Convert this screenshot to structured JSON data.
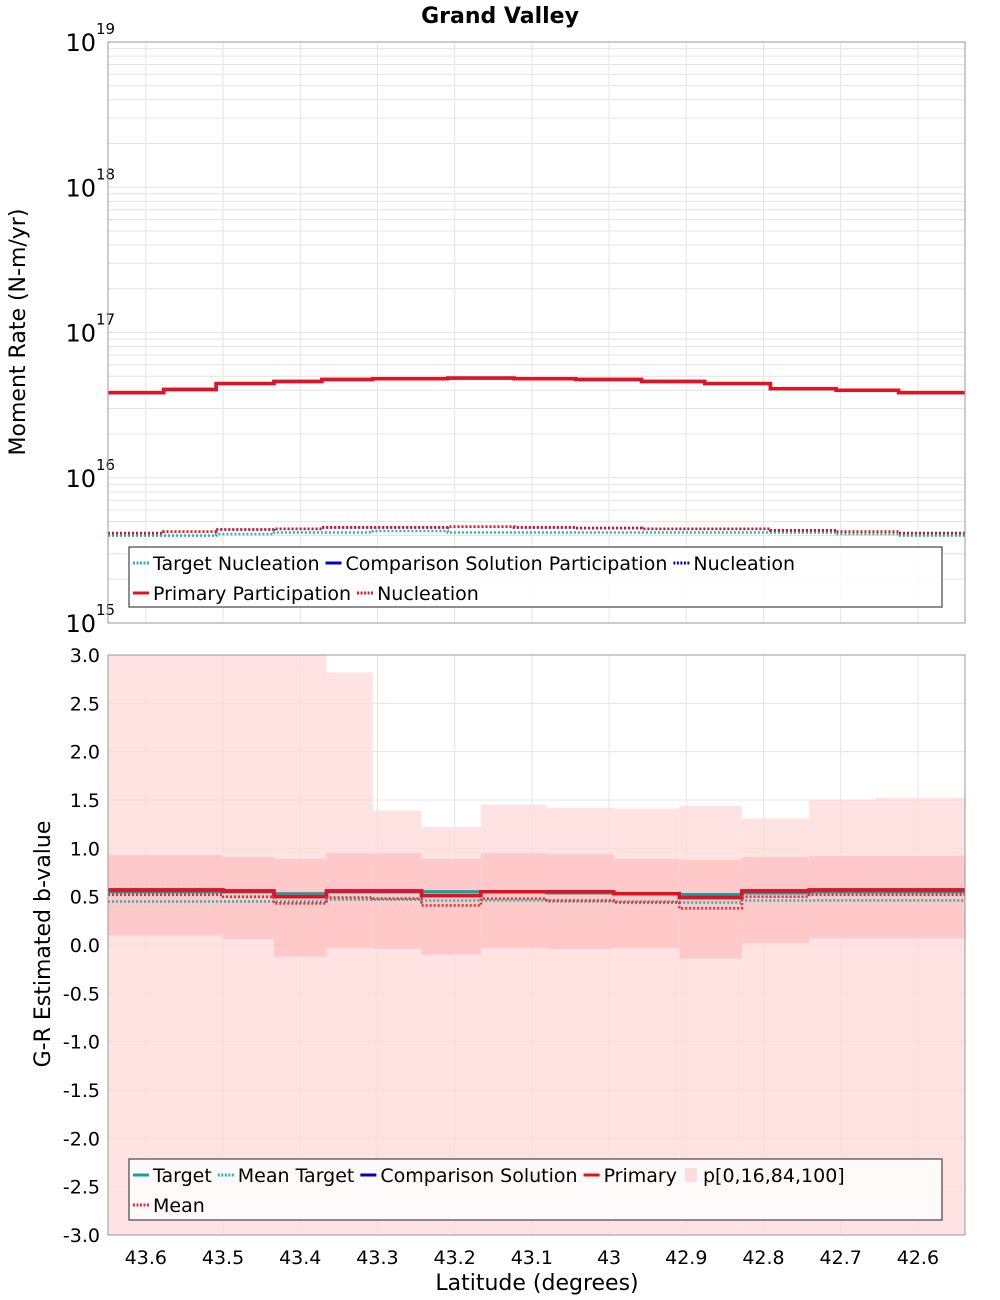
{
  "figure": {
    "title": "Grand Valley",
    "xlabel": "Latitude (degrees)",
    "x_ticks": [
      43.6,
      43.5,
      43.4,
      43.3,
      43.2,
      43.1,
      43.0,
      42.9,
      42.8,
      42.7,
      42.6
    ],
    "x_tick_labels": [
      "43.6",
      "43.5",
      "43.4",
      "43.3",
      "43.2",
      "43.1",
      "43",
      "42.9",
      "42.8",
      "42.7",
      "42.6"
    ],
    "xlim": [
      43.649,
      42.539
    ]
  },
  "colors": {
    "target": "#1a9e9e",
    "mean_target": "#22b8b8",
    "comparison": "#0000cc",
    "primary": "#e8101a",
    "mean_primary": "#e03030",
    "band_outer": "#ffdcdc",
    "band_inner": "#ffc4c4",
    "grid": "#e4e4e4"
  },
  "chart_data": [
    {
      "type": "line",
      "subtype": "step",
      "ylabel": "Moment Rate (N-m/yr)",
      "yscale": "log",
      "ylim": [
        1000000000000000.0,
        1e+19
      ],
      "y_ticks": [
        {
          "base": "10",
          "exp": "15"
        },
        {
          "base": "10",
          "exp": "16"
        },
        {
          "base": "10",
          "exp": "17"
        },
        {
          "base": "10",
          "exp": "18"
        },
        {
          "base": "10",
          "exp": "19"
        }
      ],
      "bins": [
        [
          43.649,
          43.577
        ],
        [
          43.577,
          43.509
        ],
        [
          43.509,
          43.434
        ],
        [
          43.434,
          43.372
        ],
        [
          43.372,
          43.306
        ],
        [
          43.306,
          43.209
        ],
        [
          43.209,
          43.123
        ],
        [
          43.123,
          43.043
        ],
        [
          43.043,
          42.958
        ],
        [
          42.958,
          42.876
        ],
        [
          42.876,
          42.791
        ],
        [
          42.791,
          42.706
        ],
        [
          42.706,
          42.625
        ],
        [
          42.625,
          42.539
        ]
      ],
      "series": [
        {
          "name": "Target Nucleation",
          "style": "dotted",
          "color_key": "mean_target",
          "values": [
            4000000000000000.0,
            4000000000000000.0,
            4100000000000000.0,
            4200000000000000.0,
            4200000000000000.0,
            4300000000000000.0,
            4200000000000000.0,
            4200000000000000.0,
            4200000000000000.0,
            4200000000000000.0,
            4200000000000000.0,
            4200000000000000.0,
            4100000000000000.0,
            4000000000000000.0
          ]
        },
        {
          "name": "Comparison Solution Participation",
          "style": "solid",
          "color_key": "comparison",
          "values": [
            3.85e+16,
            4.05e+16,
            4.45e+16,
            4.6e+16,
            4.75e+16,
            4.8e+16,
            4.85e+16,
            4.8e+16,
            4.75e+16,
            4.6e+16,
            4.45e+16,
            4.1e+16,
            4e+16,
            3.85e+16
          ]
        },
        {
          "name": "Nucleation",
          "style": "dotted",
          "color_key": "comparison",
          "values": [
            4150000000000000.0,
            4250000000000000.0,
            4400000000000000.0,
            4450000000000000.0,
            4550000000000000.0,
            4550000000000000.0,
            4600000000000000.0,
            4550000000000000.0,
            4500000000000000.0,
            4450000000000000.0,
            4450000000000000.0,
            4350000000000000.0,
            4250000000000000.0,
            4150000000000000.0
          ]
        },
        {
          "name": "Primary Participation",
          "style": "solid",
          "color_key": "primary",
          "values": [
            3.85e+16,
            4.05e+16,
            4.45e+16,
            4.6e+16,
            4.75e+16,
            4.8e+16,
            4.85e+16,
            4.8e+16,
            4.75e+16,
            4.6e+16,
            4.45e+16,
            4.1e+16,
            4e+16,
            3.85e+16
          ]
        },
        {
          "name": "Nucleation",
          "style": "dotted",
          "color_key": "primary",
          "values": [
            4150000000000000.0,
            4250000000000000.0,
            4400000000000000.0,
            4450000000000000.0,
            4550000000000000.0,
            4550000000000000.0,
            4600000000000000.0,
            4550000000000000.0,
            4500000000000000.0,
            4450000000000000.0,
            4450000000000000.0,
            4350000000000000.0,
            4250000000000000.0,
            4150000000000000.0
          ]
        }
      ],
      "legend": {
        "placement": "bottom",
        "rows": [
          [
            {
              "label": "Target Nucleation",
              "style": "dotted",
              "color_key": "mean_target"
            },
            {
              "label": "Comparison Solution Participation",
              "style": "solid",
              "color_key": "comparison"
            },
            {
              "label": "Nucleation",
              "style": "dotted",
              "color_key": "comparison"
            }
          ],
          [
            {
              "label": "Primary Participation",
              "style": "solid",
              "color_key": "primary"
            },
            {
              "label": "Nucleation",
              "style": "dotted",
              "color_key": "primary"
            }
          ]
        ]
      }
    },
    {
      "type": "line",
      "subtype": "step",
      "ylabel": "G-R Estimated b-value",
      "yscale": "linear",
      "ylim": [
        -3.0,
        3.0
      ],
      "y_ticks": [
        "3.0",
        "2.5",
        "2.0",
        "1.5",
        "1.0",
        "0.5",
        "0.0",
        "-0.5",
        "-1.0",
        "-1.5",
        "-2.0",
        "-2.5",
        "-3.0"
      ],
      "bins": [
        [
          43.649,
          43.5
        ],
        [
          43.5,
          43.434
        ],
        [
          43.434,
          43.366
        ],
        [
          43.366,
          43.306
        ],
        [
          43.306,
          43.243
        ],
        [
          43.243,
          43.166
        ],
        [
          43.166,
          43.081
        ],
        [
          43.081,
          42.994
        ],
        [
          42.994,
          42.909
        ],
        [
          42.909,
          42.828
        ],
        [
          42.828,
          42.741
        ],
        [
          42.741,
          42.655
        ],
        [
          42.655,
          42.539
        ]
      ],
      "percentile_band": {
        "name": "p[0,16,84,100]",
        "p0": [
          -3.0,
          -3.0,
          -3.0,
          -3.0,
          -3.0,
          -3.0,
          -3.0,
          -3.0,
          -3.0,
          -3.0,
          -3.0,
          -3.0,
          -3.0
        ],
        "p16": [
          0.1,
          0.06,
          -0.12,
          -0.03,
          -0.04,
          -0.1,
          -0.03,
          -0.04,
          -0.03,
          -0.14,
          0.02,
          0.07,
          0.07
        ],
        "p84": [
          0.93,
          0.91,
          0.89,
          0.95,
          0.95,
          0.89,
          0.95,
          0.94,
          0.89,
          0.88,
          0.91,
          0.92,
          0.92
        ],
        "p100": [
          3.0,
          3.0,
          3.0,
          2.82,
          1.39,
          1.22,
          1.45,
          1.42,
          1.41,
          1.44,
          1.31,
          1.5,
          1.52
        ]
      },
      "series": [
        {
          "name": "Target",
          "style": "solid",
          "color_key": "target",
          "values": [
            0.55,
            0.55,
            0.53,
            0.55,
            0.55,
            0.55,
            0.55,
            0.54,
            0.53,
            0.52,
            0.54,
            0.55,
            0.55
          ]
        },
        {
          "name": "Mean Target",
          "style": "dotted",
          "color_key": "mean_target",
          "values": [
            0.45,
            0.45,
            0.45,
            0.47,
            0.47,
            0.46,
            0.46,
            0.45,
            0.45,
            0.44,
            0.46,
            0.46,
            0.46
          ]
        },
        {
          "name": "Comparison Solution",
          "style": "solid",
          "color_key": "comparison",
          "values": [
            0.57,
            0.56,
            0.5,
            0.56,
            0.56,
            0.51,
            0.55,
            0.55,
            0.53,
            0.49,
            0.56,
            0.57,
            0.57
          ]
        },
        {
          "name": "Primary",
          "style": "solid",
          "color_key": "primary",
          "values": [
            0.57,
            0.56,
            0.5,
            0.56,
            0.56,
            0.51,
            0.55,
            0.55,
            0.53,
            0.49,
            0.56,
            0.57,
            0.57
          ]
        },
        {
          "name": "Mean",
          "style": "dotted",
          "color_key": "mean_primary",
          "values": [
            0.52,
            0.5,
            0.43,
            0.49,
            0.48,
            0.41,
            0.48,
            0.46,
            0.44,
            0.38,
            0.5,
            0.52,
            0.52
          ]
        }
      ],
      "legend": {
        "placement": "bottom",
        "rows": [
          [
            {
              "label": "Target",
              "style": "solid",
              "color_key": "target"
            },
            {
              "label": "Mean Target",
              "style": "dotted",
              "color_key": "mean_target"
            },
            {
              "label": "Comparison Solution",
              "style": "solid",
              "color_key": "comparison"
            },
            {
              "label": "Primary",
              "style": "solid",
              "color_key": "primary"
            },
            {
              "label": "p[0,16,84,100]",
              "style": "box",
              "color_key": "band_outer"
            }
          ],
          [
            {
              "label": "Mean",
              "style": "dotted",
              "color_key": "mean_primary"
            }
          ]
        ]
      }
    }
  ]
}
